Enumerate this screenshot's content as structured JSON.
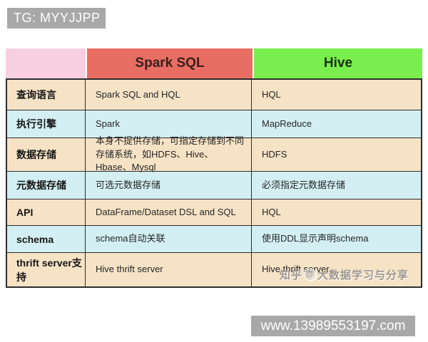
{
  "page": {
    "tg_badge": "TG: MYYJJPP",
    "url_badge": "www.13989553197.com"
  },
  "watermark": {
    "site": "知乎",
    "at": "@",
    "account": "大数据学习与分享"
  },
  "table": {
    "header": {
      "empty": "",
      "spark": "Spark SQL",
      "hive": "Hive"
    },
    "rows": [
      {
        "label": "查询语言",
        "spark": "Spark SQL and HQL",
        "hive": "HQL"
      },
      {
        "label": "执行引擎",
        "spark": "Spark",
        "hive": "MapReduce"
      },
      {
        "label": "数据存储",
        "spark": "本身不提供存储，可指定存储到不同存储系统，如HDFS、Hive、Hbase、Mysql",
        "hive": "HDFS"
      },
      {
        "label": "元数据存储",
        "spark": "可选元数据存储",
        "hive": "必须指定元数据存储"
      },
      {
        "label": "API",
        "spark": "DataFrame/Dataset DSL and SQL",
        "hive": "HQL"
      },
      {
        "label": "schema",
        "spark": "schema自动关联",
        "hive": "使用DDL显示声明schema"
      },
      {
        "label": "thrift server支持",
        "spark": "Hive thrift server",
        "hive": "Hive thrift server"
      }
    ],
    "colors": {
      "pink": "#f8cfe1",
      "spark_red": "#e86e63",
      "hive_green": "#79ee4e",
      "cream": "#f6e3c6",
      "cyan": "#d3eff3",
      "border": "#2d2d2d",
      "badge_gray": "#a8a8a8"
    }
  }
}
